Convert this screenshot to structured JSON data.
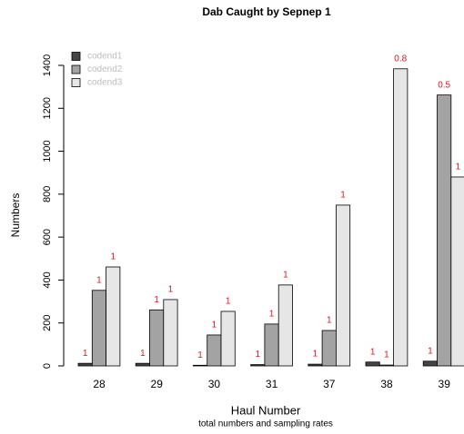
{
  "chart_data": {
    "type": "bar",
    "title": "Dab Caught by Sepnep 1",
    "x_label": "Haul Number",
    "subtitle": "total numbers and sampling rates",
    "y_label": "Numbers",
    "categories": [
      "28",
      "29",
      "30",
      "31",
      "37",
      "38",
      "39"
    ],
    "series": [
      {
        "name": "codend1",
        "color": "#454545",
        "values": [
          12,
          12,
          3,
          6,
          8,
          18,
          22
        ],
        "rates": [
          1,
          1,
          1,
          1,
          1,
          1,
          1
        ]
      },
      {
        "name": "codend2",
        "color": "#a3a3a3",
        "values": [
          352,
          261,
          144,
          195,
          165,
          4,
          1262
        ],
        "rates": [
          1,
          1,
          1,
          1,
          1,
          1,
          0.5
        ]
      },
      {
        "name": "codend3",
        "color": "#e6e6e6",
        "values": [
          461,
          309,
          254,
          377,
          749,
          1384,
          880
        ],
        "rates": [
          1,
          1,
          1,
          1,
          1,
          0.8,
          1
        ]
      }
    ],
    "ylim": [
      0,
      1400
    ],
    "yticks": [
      0,
      200,
      400,
      600,
      800,
      1000,
      1200,
      1400
    ],
    "legend": "top-left"
  }
}
